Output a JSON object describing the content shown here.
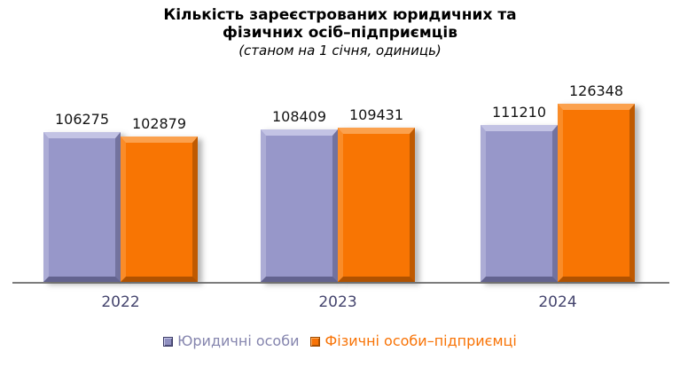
{
  "title": {
    "line1": "Кількість зареєстрованих юридичних та",
    "line2": "фізичних осіб–підприємців",
    "subtitle": "(станом на 1 січня, одиниць)"
  },
  "chart_data": {
    "type": "bar",
    "title": "Кількість зареєстрованих юридичних та фізичних осіб–підприємців",
    "subtitle": "(станом на 1 січня, одиниць)",
    "categories": [
      "2022",
      "2023",
      "2024"
    ],
    "series": [
      {
        "name": "Юридичні особи",
        "color": "#9797C9",
        "values": [
          106275,
          108409,
          111210
        ]
      },
      {
        "name": "Фізичні особи–підприємці",
        "color": "#F87503",
        "values": [
          102879,
          109431,
          126348
        ]
      }
    ],
    "xlabel": "",
    "ylabel": "",
    "ylim": [
      0,
      135000
    ],
    "grid": false,
    "legend_position": "bottom",
    "value_labels": true,
    "style": "3d-bevel"
  },
  "colors": {
    "series_legal": "#9797C9",
    "series_entrepreneurs": "#F87503",
    "axis_line": "#7C7C7C",
    "category_label": "#45456E",
    "value_label": "#141414",
    "legend_text_legal": "#8585AE",
    "legend_text_entrepreneurs": "#F87306",
    "background": "#FFFFFF"
  }
}
